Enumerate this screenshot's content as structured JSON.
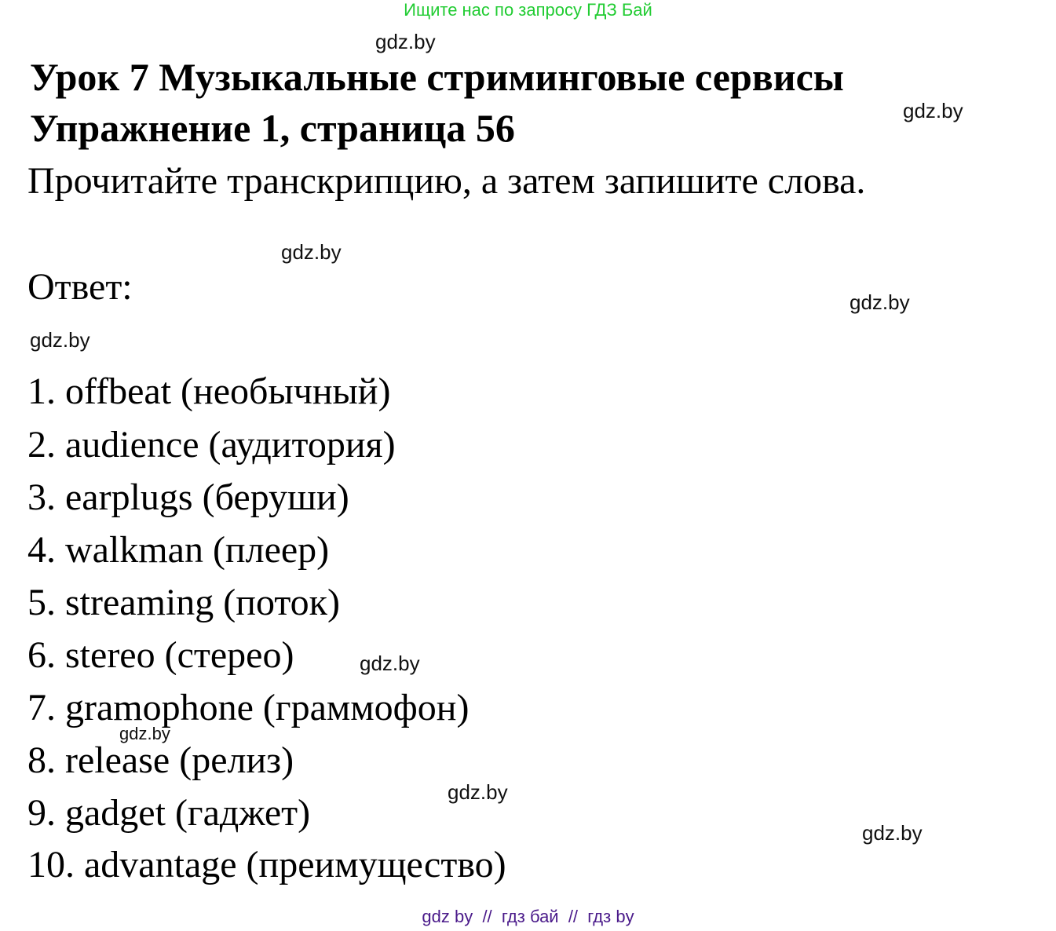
{
  "header_banner": "Ищите нас по запросу ГДЗ Бай",
  "title": "Урок 7 Музыкальные стриминговые сервисы",
  "subtitle": "Упражнение 1, страница 56",
  "instruction": "Прочитайте транскрипцию, а затем запишите слова.",
  "answer_label": "Ответ:",
  "answers": [
    "1. offbeat (необычный)",
    "2. audience (аудитория)",
    "3. earplugs (беруши)",
    "4. walkman (плеер)",
    "5. streaming (поток)",
    "6. stereo (стерео)",
    "7. gramophone (граммофон)",
    "8. release (релиз)",
    "9. gadget (гаджет)",
    "10. advantage (преимущество)"
  ],
  "watermark": "gdz.by",
  "footer": "gdz by  //  гдз бай  //  гдз by",
  "colors": {
    "banner": "#22cc33",
    "footer": "#4a1a8a"
  }
}
